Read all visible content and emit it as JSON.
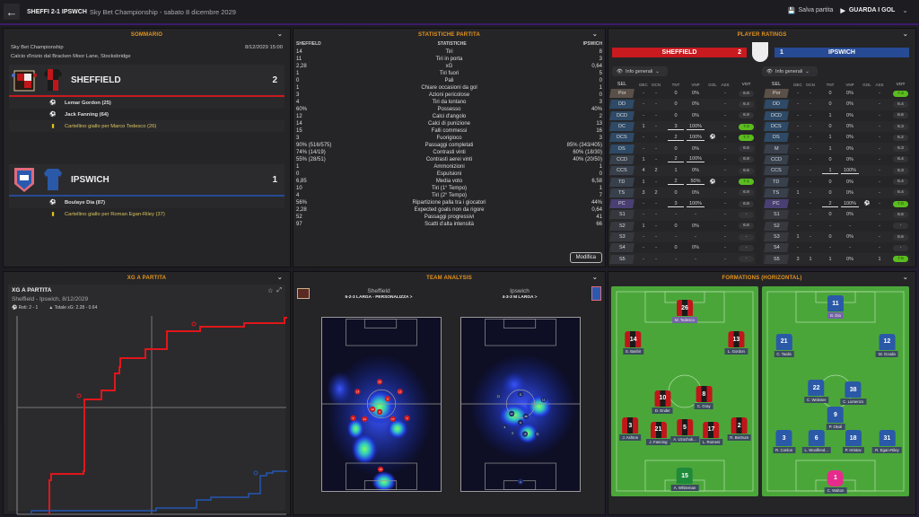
{
  "topbar": {
    "back": "←",
    "score_title": "SHEFFI 2-1 IPSWCH",
    "subtitle": "Sky Bet Championship - sabato 8 dicembre 2029",
    "save": "Salva partita",
    "watch": "GUARDA I GOL"
  },
  "summary": {
    "title": "SOMMARIO",
    "competition": "Sky Bet Championship",
    "datetime": "8/12/2029 15:00",
    "kickoff": "Calcio d'inizio dal Bracken Moor Lane, Stocksbridge",
    "home": {
      "name": "SHEFFIELD",
      "score": "2",
      "color": "#c81a1f",
      "events": [
        {
          "type": "goal",
          "text": "Lemar Gordon (25)"
        },
        {
          "type": "goal",
          "text": "Jack Fanning (64)"
        },
        {
          "type": "card",
          "text": "Cartellino giallo per Marco Tedesco (26)"
        }
      ]
    },
    "away": {
      "name": "IPSWICH",
      "score": "1",
      "color": "#264a94",
      "events": [
        {
          "type": "goal",
          "text": "Boulaye Dia (87)"
        },
        {
          "type": "card",
          "text": "Cartellino giallo per Roman Egan-Riley (37)"
        }
      ]
    }
  },
  "stats": {
    "title": "STATISTICHE PARTITA",
    "head": [
      "SHEFFIELD",
      "STATISTICHE",
      "IPSWICH"
    ],
    "rows": [
      [
        "14",
        "Tiri",
        "8"
      ],
      [
        "11",
        "Tiri in porta",
        "3"
      ],
      [
        "2,28",
        "xG",
        "0,64"
      ],
      [
        "1",
        "Tiri fuori",
        "5"
      ],
      [
        "0",
        "Pali",
        "0"
      ],
      [
        "1",
        "Chiare occasioni da gol",
        "1"
      ],
      [
        "3",
        "Azioni pericolose",
        "0"
      ],
      [
        "4",
        "Tiri da lontano",
        "3"
      ],
      [
        "60%",
        "Possesso",
        "40%"
      ],
      [
        "12",
        "Calci d'angolo",
        "2"
      ],
      [
        "14",
        "Calci di punizione",
        "13"
      ],
      [
        "15",
        "Falli commessi",
        "16"
      ],
      [
        "3",
        "Fuorigioco",
        "3"
      ],
      [
        "90% (516/575)",
        "Passaggi completati",
        "85% (343/405)"
      ],
      [
        "74% (14/19)",
        "Contrasti vinti",
        "60% (18/30)"
      ],
      [
        "55% (28/51)",
        "Contrasti aerei vinti",
        "40% (20/50)"
      ],
      [
        "1",
        "Ammonizioni",
        "1"
      ],
      [
        "0",
        "Espulsioni",
        "0"
      ],
      [
        "6,85",
        "Media voto",
        "6,58"
      ],
      [
        "10",
        "Tiri (1° Tempo)",
        "1"
      ],
      [
        "4",
        "Tiri (2° Tempo)",
        "7"
      ],
      [
        "56%",
        "Ripartizione palla tra i giocatori",
        "44%"
      ],
      [
        "2,28",
        "Expected goals non da rigore",
        "0,64"
      ],
      [
        "52",
        "Passaggi progressivi",
        "41"
      ],
      [
        "97",
        "Scatti d'alta intensità",
        "66"
      ]
    ],
    "edit": "Modifica"
  },
  "ratings": {
    "title": "PLAYER RATINGS",
    "home_name": "SHEFFIELD",
    "home_score": "2",
    "away_name": "IPSWICH",
    "away_score": "1",
    "info": "Info generali",
    "cols": [
      "SEL",
      "DEC",
      "OCN",
      "TNT",
      "VNP",
      "GOL",
      "ASS",
      "VOT"
    ],
    "home": [
      [
        "Por",
        "-",
        "-",
        "0",
        "0%",
        "",
        "-",
        "6.8",
        0,
        "gk"
      ],
      [
        "DD",
        "-",
        "-",
        "0",
        "0%",
        "",
        "-",
        "6.4",
        0,
        "d"
      ],
      [
        "DCD",
        "-",
        "-",
        "0",
        "0%",
        "",
        "-",
        "6.9",
        0,
        "d"
      ],
      [
        "DC",
        "1",
        "-",
        "3",
        "100%",
        "",
        "-",
        "7.0",
        1,
        "d"
      ],
      [
        "DCS",
        "-",
        "-",
        "2",
        "100%",
        "⚽",
        "-",
        "7.7",
        1,
        "d"
      ],
      [
        "DS",
        "-",
        "-",
        "0",
        "0%",
        "",
        "-",
        "6.6",
        0,
        "d"
      ],
      [
        "CCD",
        "1",
        "-",
        "2",
        "100%",
        "",
        "-",
        "6.9",
        0,
        "m"
      ],
      [
        "CCS",
        "4",
        "2",
        "1",
        "0%",
        "",
        "-",
        "6.6",
        0,
        "m"
      ],
      [
        "TD",
        "1",
        "-",
        "2",
        "50%",
        "⚽",
        "-",
        "7.1",
        1,
        "m"
      ],
      [
        "TS",
        "3",
        "2",
        "0",
        "0%",
        "",
        "-",
        "6.9",
        0,
        "m"
      ],
      [
        "PC",
        "-",
        "-",
        "3",
        "100%",
        "",
        "-",
        "6.8",
        0,
        "f"
      ],
      [
        "S1",
        "-",
        "-",
        "-",
        "-",
        "",
        "-",
        "-",
        0,
        "s"
      ],
      [
        "S2",
        "1",
        "-",
        "0",
        "0%",
        "",
        "-",
        "6.6",
        0,
        "s"
      ],
      [
        "S3",
        "-",
        "-",
        "-",
        "-",
        "",
        "-",
        "-",
        0,
        "s"
      ],
      [
        "S4",
        "-",
        "-",
        "0",
        "0%",
        "",
        "-",
        "-",
        0,
        "s"
      ],
      [
        "S5",
        "-",
        "-",
        "-",
        "-",
        "",
        "-",
        "-",
        0,
        "s"
      ]
    ],
    "away": [
      [
        "Por",
        "-",
        "-",
        "0",
        "0%",
        "",
        "-",
        "7.3",
        1,
        "gk"
      ],
      [
        "DD",
        "-",
        "-",
        "0",
        "0%",
        "",
        "-",
        "6.4",
        0,
        "d"
      ],
      [
        "DCD",
        "-",
        "-",
        "1",
        "0%",
        "",
        "-",
        "6.6",
        0,
        "d"
      ],
      [
        "DCS",
        "-",
        "-",
        "0",
        "0%",
        "",
        "-",
        "6.3",
        0,
        "d"
      ],
      [
        "DS",
        "-",
        "-",
        "1",
        "0%",
        "",
        "-",
        "6.2",
        0,
        "d"
      ],
      [
        "M",
        "-",
        "-",
        "1",
        "0%",
        "",
        "-",
        "6.3",
        0,
        "m"
      ],
      [
        "CCD",
        "-",
        "-",
        "0",
        "0%",
        "",
        "-",
        "6.4",
        0,
        "m"
      ],
      [
        "CCS",
        "-",
        "-",
        "1",
        "100%",
        "",
        "-",
        "6.3",
        0,
        "m"
      ],
      [
        "TD",
        "-",
        "-",
        "0",
        "0%",
        "",
        "-",
        "6.4",
        0,
        "m"
      ],
      [
        "TS",
        "1",
        "-",
        "0",
        "0%",
        "",
        "-",
        "6.4",
        0,
        "m"
      ],
      [
        "PC",
        "-",
        "-",
        "2",
        "100%",
        "⚽",
        "-",
        "7.0",
        1,
        "f"
      ],
      [
        "S1",
        "-",
        "-",
        "0",
        "0%",
        "",
        "-",
        "6.6",
        0,
        "s"
      ],
      [
        "S2",
        "-",
        "-",
        "-",
        "-",
        "",
        "-",
        "-",
        0,
        "s"
      ],
      [
        "S3",
        "1",
        "-",
        "0",
        "0%",
        "",
        "-",
        "6.6",
        0,
        "s"
      ],
      [
        "S4",
        "-",
        "-",
        "-",
        "-",
        "",
        "-",
        "-",
        0,
        "s"
      ],
      [
        "S5",
        "3",
        "1",
        "1",
        "0%",
        "",
        "1",
        "7.5",
        1,
        "s"
      ]
    ]
  },
  "xg": {
    "title": "XG A PARTITA",
    "card_title": "XG A PARTITA",
    "sub": "Sheffield - Ipswich, 8/12/2029",
    "goals": "Reti: 2 - 1",
    "total": "Totale xG: 2.28 - 0.64",
    "home_color": "#e0161a",
    "away_color": "#2456b0"
  },
  "team": {
    "title": "TEAM ANALYSIS",
    "home": {
      "name": "Sheffield",
      "formation": "5-2-3 LARGA - PERSONALIZZA >"
    },
    "away": {
      "name": "Ipswich",
      "formation": "4-3-3 M LARGA >"
    }
  },
  "formations": {
    "title": "FORMATIONS (HORIZONTAL)",
    "home": [
      [
        "26",
        "M. Tedesco",
        50,
        12,
        "cap"
      ],
      [
        "14",
        "S. Bashir",
        15,
        27,
        ""
      ],
      [
        "13",
        "L. Gordon",
        85,
        27,
        ""
      ],
      [
        "10",
        "D. Ender",
        35,
        55,
        ""
      ],
      [
        "8",
        "C. Gray",
        63,
        53,
        ""
      ],
      [
        "3",
        "J. Ashton",
        13,
        68,
        ""
      ],
      [
        "21",
        "J. Fanning",
        32,
        70,
        ""
      ],
      [
        "5",
        "A. Uzochuk...",
        50,
        69,
        ""
      ],
      [
        "17",
        "L. Romeni",
        68,
        70,
        ""
      ],
      [
        "2",
        "R. Bertrum",
        87,
        68,
        ""
      ],
      [
        "15",
        "A. Whiteman",
        50,
        92,
        "gk"
      ]
    ],
    "away": [
      [
        "11",
        "B. Dia",
        50,
        10,
        "cap"
      ],
      [
        "21",
        "C. Taalis",
        15,
        28,
        ""
      ],
      [
        "12",
        "M. Gooda",
        85,
        28,
        ""
      ],
      [
        "22",
        "C. Webster",
        37,
        50,
        ""
      ],
      [
        "38",
        "C. Lumenzo",
        62,
        51,
        ""
      ],
      [
        "9",
        "P. Okoli",
        50,
        63,
        ""
      ],
      [
        "3",
        "R. Conlon",
        15,
        74,
        ""
      ],
      [
        "6",
        "L. Woolfend...",
        37,
        74,
        ""
      ],
      [
        "18",
        "P. Hristov",
        62,
        74,
        ""
      ],
      [
        "31",
        "R. Egan-Riley",
        85,
        74,
        ""
      ],
      [
        "1",
        "C. Walton",
        50,
        93,
        "gka"
      ]
    ]
  }
}
